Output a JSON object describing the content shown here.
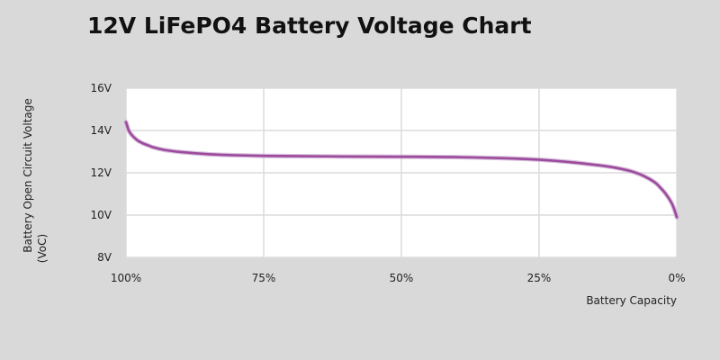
{
  "chart_data": {
    "type": "line",
    "title": "12V LiFePO4 Battery Voltage Chart",
    "xlabel": "Battery Capacity",
    "ylabel_line1": "Battery Open Circuit Voltage",
    "ylabel_line2": "(VoC)",
    "ylim": [
      8,
      16
    ],
    "xlim": [
      100,
      0
    ],
    "x_reversed": true,
    "grid": true,
    "x_ticks": [
      {
        "value": 100,
        "label": "100%"
      },
      {
        "value": 75,
        "label": "75%"
      },
      {
        "value": 50,
        "label": "50%"
      },
      {
        "value": 25,
        "label": "25%"
      },
      {
        "value": 0,
        "label": "0%"
      }
    ],
    "y_ticks": [
      {
        "value": 16,
        "label": "16V"
      },
      {
        "value": 14,
        "label": "14V"
      },
      {
        "value": 12,
        "label": "12V"
      },
      {
        "value": 10,
        "label": "10V"
      },
      {
        "value": 8,
        "label": "8V"
      }
    ],
    "series": [
      {
        "color": "#9c4a9c",
        "x": [
          100,
          99.5,
          99,
          98,
          97,
          96,
          95,
          93,
          90,
          85,
          80,
          75,
          70,
          60,
          50,
          40,
          30,
          25,
          20,
          15,
          12,
          10,
          8,
          6,
          4,
          3,
          2,
          1,
          0.5,
          0
        ],
        "y": [
          14.4,
          14.0,
          13.8,
          13.55,
          13.4,
          13.3,
          13.2,
          13.08,
          12.98,
          12.88,
          12.83,
          12.8,
          12.79,
          12.77,
          12.76,
          12.74,
          12.68,
          12.62,
          12.52,
          12.38,
          12.28,
          12.18,
          12.05,
          11.85,
          11.55,
          11.3,
          11.0,
          10.6,
          10.3,
          9.9
        ]
      }
    ]
  }
}
